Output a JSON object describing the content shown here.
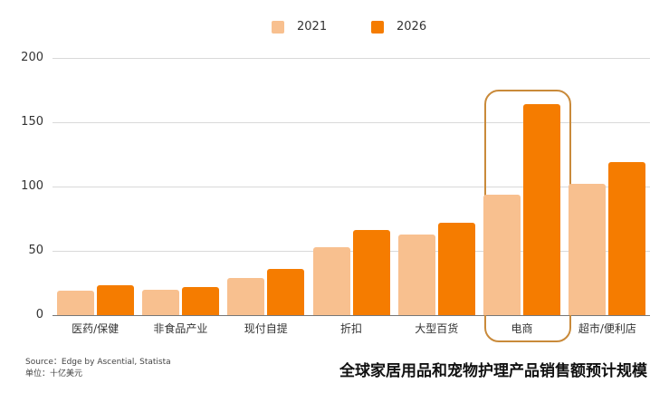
{
  "legend": [
    {
      "label": "2021",
      "color": "#F8C08F"
    },
    {
      "label": "2026",
      "color": "#F57C00"
    }
  ],
  "y_ticks": [
    "200",
    "150",
    "100",
    "50",
    "0"
  ],
  "footer": {
    "source": "Source：Edge by Ascential, Statista",
    "unit": "单位：十亿美元",
    "title": "全球家居用品和宠物护理产品销售额预计规模"
  },
  "highlight_category": "电商",
  "chart_data": {
    "type": "bar",
    "title": "全球家居用品和宠物护理产品销售额预计规模",
    "xlabel": "",
    "ylabel": "单位：十亿美元",
    "ylim": [
      0,
      200
    ],
    "yticks": [
      0,
      50,
      100,
      150,
      200
    ],
    "grid": true,
    "legend_position": "top",
    "categories": [
      "医药/保健",
      "非食品产业",
      "现付自提",
      "折扣",
      "大型百货",
      "电商",
      "超市/便利店"
    ],
    "series": [
      {
        "name": "2021",
        "color": "#F8C08F",
        "values": [
          19,
          20,
          29,
          53,
          63,
          94,
          102
        ]
      },
      {
        "name": "2026",
        "color": "#F57C00",
        "values": [
          23,
          22,
          36,
          66,
          72,
          164,
          119
        ]
      }
    ],
    "annotations": [
      "电商 category highlighted with rounded box"
    ],
    "source": "Edge by Ascential, Statista"
  }
}
